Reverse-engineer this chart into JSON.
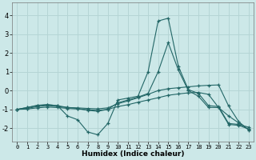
{
  "xlabel": "Humidex (Indice chaleur)",
  "ylabel": "",
  "bg_color": "#cce8e8",
  "grid_color": "#b5d5d5",
  "line_color": "#226666",
  "xlim": [
    -0.5,
    23.5
  ],
  "ylim": [
    -2.7,
    4.7
  ],
  "yticks": [
    -2,
    -1,
    0,
    1,
    2,
    3,
    4
  ],
  "xticks": [
    0,
    1,
    2,
    3,
    4,
    5,
    6,
    7,
    8,
    9,
    10,
    11,
    12,
    13,
    14,
    15,
    16,
    17,
    18,
    19,
    20,
    21,
    22,
    23
  ],
  "curves": [
    {
      "x": [
        0,
        1,
        2,
        3,
        4,
        5,
        6,
        7,
        8,
        9,
        10,
        11,
        12,
        13,
        14,
        15,
        16,
        17,
        18,
        19,
        20,
        21,
        22,
        23
      ],
      "y": [
        -1.0,
        -0.9,
        -0.8,
        -0.75,
        -0.8,
        -1.35,
        -1.55,
        -2.2,
        -2.35,
        -1.75,
        -0.5,
        -0.4,
        -0.3,
        1.0,
        3.7,
        3.85,
        1.3,
        0.05,
        -0.15,
        -0.8,
        -0.85,
        -1.75,
        -1.8,
        -1.95
      ]
    },
    {
      "x": [
        0,
        1,
        2,
        3,
        4,
        5,
        6,
        7,
        8,
        9,
        10,
        11,
        12,
        13,
        14,
        15,
        16,
        17,
        18,
        19,
        20,
        21,
        22,
        23
      ],
      "y": [
        -1.0,
        -0.95,
        -0.85,
        -0.8,
        -0.85,
        -0.9,
        -0.92,
        -0.95,
        -0.97,
        -0.92,
        -0.7,
        -0.55,
        -0.38,
        -0.2,
        0.0,
        0.1,
        0.15,
        0.2,
        0.25,
        0.28,
        0.3,
        -0.82,
        -1.65,
        -2.1
      ]
    },
    {
      "x": [
        0,
        1,
        2,
        3,
        4,
        5,
        6,
        7,
        8,
        9,
        10,
        11,
        12,
        13,
        14,
        15,
        16,
        17,
        18,
        19,
        20,
        21,
        22,
        23
      ],
      "y": [
        -1.0,
        -0.9,
        -0.78,
        -0.75,
        -0.8,
        -0.9,
        -0.95,
        -1.05,
        -1.1,
        -1.0,
        -0.65,
        -0.5,
        -0.35,
        -0.15,
        1.0,
        2.55,
        1.1,
        0.0,
        -0.3,
        -0.9,
        -0.9,
        -1.8,
        -1.85,
        -2.05
      ]
    },
    {
      "x": [
        0,
        1,
        2,
        3,
        4,
        5,
        6,
        7,
        8,
        9,
        10,
        11,
        12,
        13,
        14,
        15,
        16,
        17,
        18,
        19,
        20,
        21,
        22,
        23
      ],
      "y": [
        -1.0,
        -0.98,
        -0.92,
        -0.88,
        -0.9,
        -0.95,
        -0.98,
        -1.02,
        -1.05,
        -1.0,
        -0.85,
        -0.75,
        -0.62,
        -0.5,
        -0.38,
        -0.25,
        -0.18,
        -0.12,
        -0.1,
        -0.2,
        -0.9,
        -1.35,
        -1.72,
        -2.08
      ]
    }
  ]
}
